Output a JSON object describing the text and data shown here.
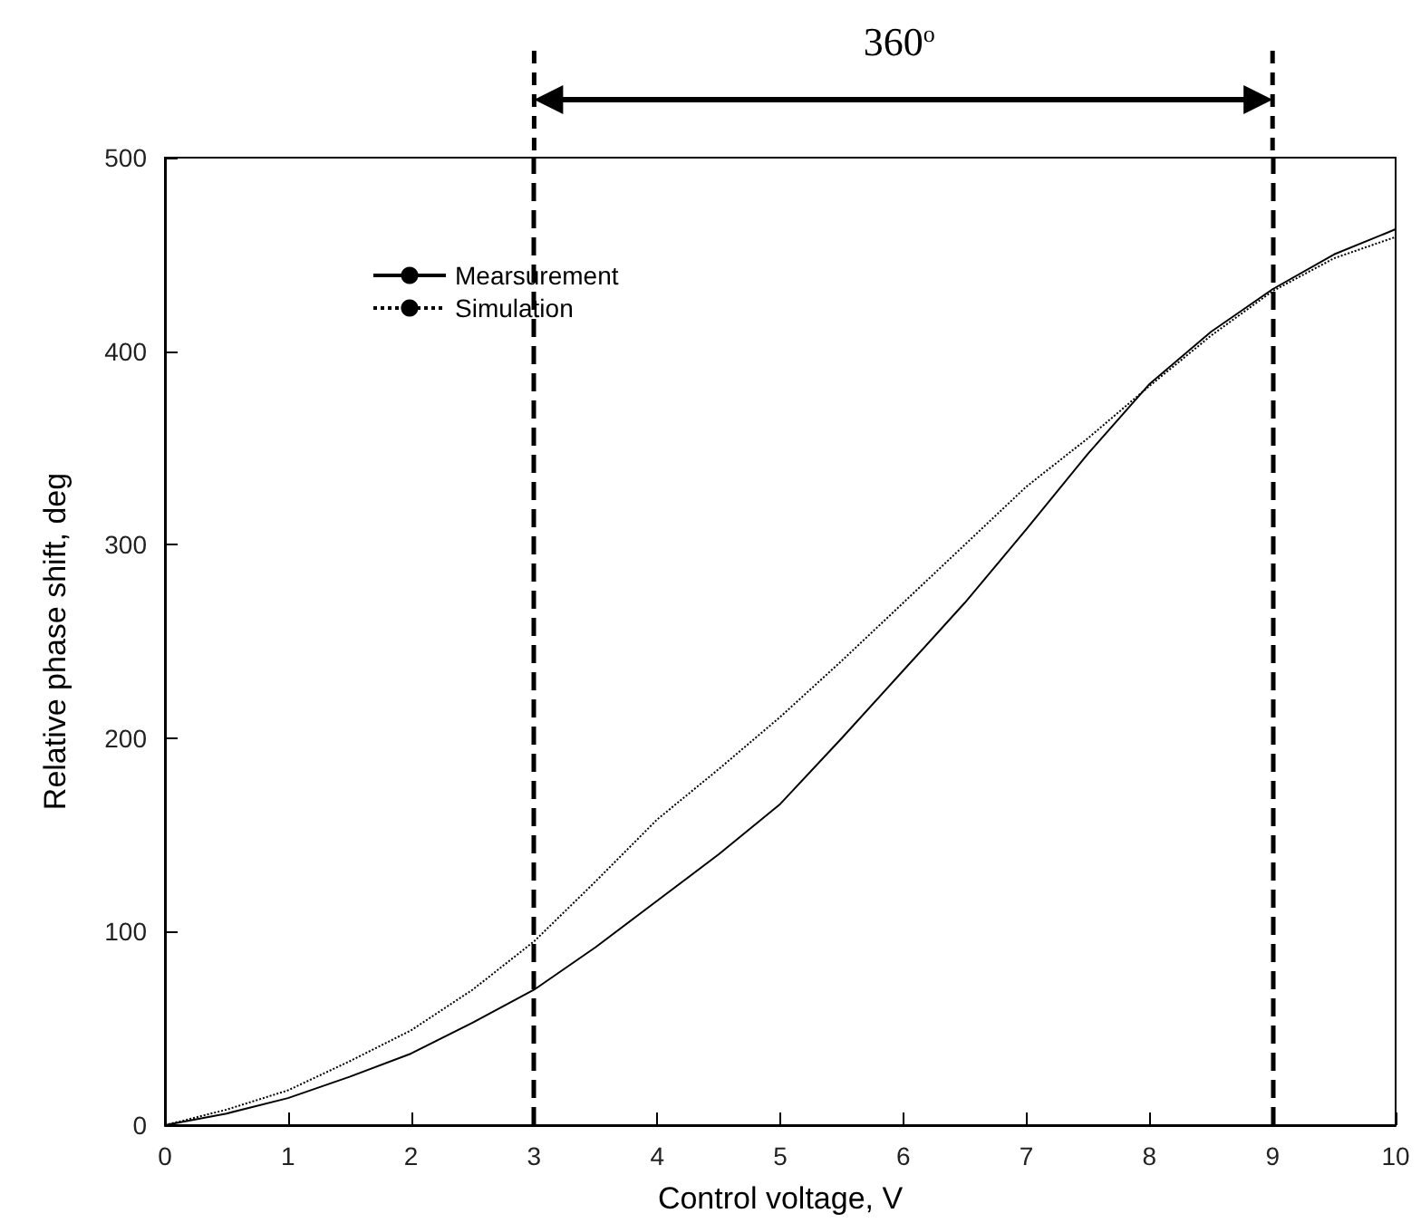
{
  "chart_data": {
    "type": "line",
    "xlabel": "Control voltage, V",
    "ylabel": "Relative phase shift, deg",
    "x": [
      0,
      0.5,
      1,
      1.5,
      2,
      2.5,
      3,
      3.5,
      4,
      4.5,
      5,
      5.5,
      6,
      6.5,
      7,
      7.5,
      8,
      8.5,
      9,
      9.5,
      10
    ],
    "series": [
      {
        "name": "Mearsurement",
        "color": "#000000",
        "line_style": "solid",
        "values": [
          0,
          6,
          14,
          25,
          37,
          53,
          70,
          92,
          116,
          140,
          166,
          200,
          235,
          270,
          308,
          347,
          383,
          410,
          432,
          450,
          463
        ]
      },
      {
        "name": "Simulation",
        "color": "#000000",
        "line_style": "dotted",
        "values": [
          0,
          8,
          18,
          33,
          49,
          70,
          95,
          126,
          158,
          184,
          211,
          240,
          270,
          300,
          330,
          355,
          382,
          408,
          431,
          448,
          459
        ]
      }
    ],
    "xlim": [
      0,
      10
    ],
    "xticks": [
      0,
      1,
      2,
      3,
      4,
      5,
      6,
      7,
      8,
      9,
      10
    ],
    "ylim": [
      0,
      500
    ],
    "yticks": [
      0,
      100,
      200,
      300,
      400,
      500
    ],
    "ref_lines": [
      {
        "axis": "x",
        "value": 3,
        "color": "#000000",
        "line_style": "dashed"
      },
      {
        "axis": "x",
        "value": 9,
        "color": "#000000",
        "line_style": "dashed"
      }
    ],
    "annotations": [
      "360$^{o}$"
    ],
    "legend": "top left",
    "marker": "none",
    "grid": false
  }
}
